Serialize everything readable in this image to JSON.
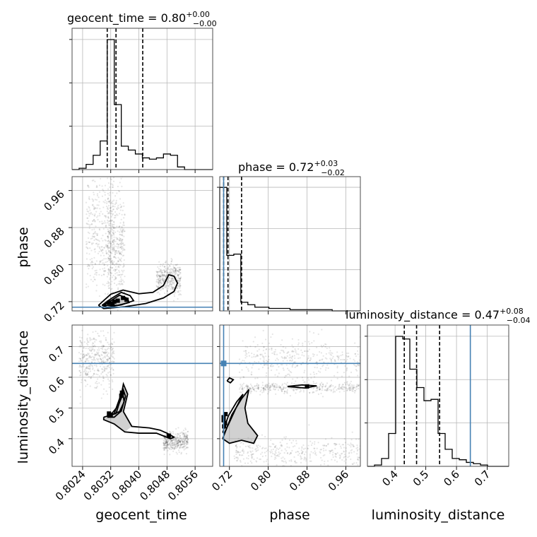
{
  "chart_data": {
    "type": "corner",
    "parameters": [
      {
        "key": "geocent_time",
        "label": "geocent_time",
        "range": [
          0.8021,
          0.8061
        ],
        "ticks": [
          "0.8024",
          "0.8032",
          "0.8040",
          "0.8048",
          "0.8056"
        ],
        "tick_values": [
          0.8024,
          0.8032,
          0.804,
          0.8048,
          0.8056
        ],
        "title_main": "geocent_time = 0.80",
        "title_sup": "+0.00",
        "title_sub": "−0.00",
        "quantiles": [
          0.8031,
          0.80335,
          0.80411
        ],
        "truth": null
      },
      {
        "key": "phase",
        "label": "phase",
        "range": [
          0.7,
          0.99
        ],
        "ticks": [
          "0.72",
          "0.80",
          "0.88",
          "0.96"
        ],
        "tick_values": [
          0.72,
          0.8,
          0.88,
          0.96
        ],
        "title_main": "phase = 0.72",
        "title_sup": "+0.03",
        "title_sub": "−0.02",
        "quantiles": [
          0.708,
          0.717,
          0.745
        ],
        "truth": 0.708
      },
      {
        "key": "luminosity_distance",
        "label": "luminosity_distance",
        "range": [
          0.31,
          0.77
        ],
        "ticks": [
          "0.4",
          "0.5",
          "0.6",
          "0.7"
        ],
        "tick_values": [
          0.4,
          0.5,
          0.6,
          0.7
        ],
        "title_main": "luminosity_distance = 0.47",
        "title_sup": "+0.08",
        "title_sub": "−0.04",
        "quantiles": [
          0.43,
          0.47,
          0.545
        ],
        "truth": 0.645
      }
    ],
    "hist_1d": {
      "geocent_time": {
        "edges": [
          0.8021,
          0.8023,
          0.8025,
          0.8027,
          0.8029,
          0.8031,
          0.8033,
          0.8035,
          0.8037,
          0.8039,
          0.8041,
          0.8043,
          0.8045,
          0.8047,
          0.8049,
          0.8051,
          0.8053,
          0.8055,
          0.8057,
          0.8059,
          0.8061
        ],
        "counts": [
          0.0,
          0.01,
          0.04,
          0.11,
          0.22,
          1.0,
          0.5,
          0.18,
          0.15,
          0.12,
          0.09,
          0.08,
          0.09,
          0.12,
          0.11,
          0.02,
          0.0,
          0.0,
          0.0,
          0.0
        ]
      },
      "phase": {
        "edges": [
          0.7,
          0.7145,
          0.729,
          0.7435,
          0.758,
          0.7725,
          0.787,
          0.8015,
          0.816,
          0.8305,
          0.845,
          0.8595,
          0.874,
          0.8885,
          0.903,
          0.9175,
          0.932,
          0.9465,
          0.961,
          0.9755,
          0.99
        ],
        "counts": [
          1.0,
          0.45,
          0.46,
          0.07,
          0.05,
          0.03,
          0.03,
          0.02,
          0.02,
          0.02,
          0.01,
          0.01,
          0.01,
          0.01,
          0.01,
          0.01,
          0.0,
          0.0,
          0.0,
          0.0
        ]
      },
      "luminosity_distance": {
        "edges": [
          0.31,
          0.333,
          0.356,
          0.379,
          0.402,
          0.425,
          0.448,
          0.471,
          0.494,
          0.517,
          0.54,
          0.563,
          0.586,
          0.609,
          0.632,
          0.655,
          0.678,
          0.701,
          0.724,
          0.747,
          0.77
        ],
        "counts": [
          0.0,
          0.01,
          0.06,
          0.25,
          0.99,
          0.97,
          0.74,
          0.6,
          0.5,
          0.51,
          0.25,
          0.13,
          0.06,
          0.05,
          0.03,
          0.02,
          0.01,
          0.0,
          0.0,
          0.0
        ]
      }
    },
    "scatter_2d": {
      "phase_vs_geocent_time": {
        "contours": [
          [
            [
              0.80295,
              0.712
            ],
            [
              0.8032,
              0.726
            ],
            [
              0.8035,
              0.74
            ],
            [
              0.80375,
              0.733
            ],
            [
              0.80385,
              0.722
            ],
            [
              0.8035,
              0.713
            ],
            [
              0.8031,
              0.708
            ],
            [
              0.80295,
              0.712
            ]
          ],
          [
            [
              0.803,
              0.712
            ],
            [
              0.8032,
              0.722
            ],
            [
              0.80345,
              0.734
            ],
            [
              0.80368,
              0.727
            ],
            [
              0.80372,
              0.718
            ],
            [
              0.8034,
              0.712
            ],
            [
              0.803,
              0.712
            ]
          ],
          [
            [
              0.80285,
              0.712
            ],
            [
              0.8032,
              0.736
            ],
            [
              0.80355,
              0.745
            ],
            [
              0.804,
              0.737
            ],
            [
              0.8044,
              0.74
            ],
            [
              0.8047,
              0.755
            ],
            [
              0.80485,
              0.778
            ],
            [
              0.805,
              0.775
            ],
            [
              0.8051,
              0.76
            ],
            [
              0.805,
              0.742
            ],
            [
              0.8047,
              0.728
            ],
            [
              0.8042,
              0.716
            ],
            [
              0.8036,
              0.709
            ],
            [
              0.803,
              0.705
            ],
            [
              0.80285,
              0.712
            ]
          ]
        ],
        "filled_region": [
          [
            0.803,
            0.712
          ],
          [
            0.8032,
            0.722
          ],
          [
            0.80345,
            0.734
          ],
          [
            0.80368,
            0.727
          ],
          [
            0.80372,
            0.718
          ],
          [
            0.8034,
            0.712
          ],
          [
            0.803,
            0.712
          ]
        ],
        "points": [
          [
            0.80315,
            0.718
          ],
          [
            0.80325,
            0.716
          ],
          [
            0.8033,
            0.72
          ],
          [
            0.8034,
            0.722
          ],
          [
            0.80355,
            0.728
          ],
          [
            0.80365,
            0.724
          ]
        ],
        "cloud_regions": [
          {
            "x_range": [
              0.8025,
              0.8033
            ],
            "y_range": [
              0.74,
              0.99
            ]
          },
          {
            "x_range": [
              0.8031,
              0.8036
            ],
            "y_range": [
              0.72,
              0.95
            ]
          },
          {
            "x_range": [
              0.8045,
              0.8052
            ],
            "y_range": [
              0.74,
              0.8
            ]
          }
        ]
      },
      "luminosity_distance_vs_geocent_time": {
        "contours": [
          [
            [
              0.8031,
              0.47
            ],
            [
              0.8033,
              0.482
            ],
            [
              0.80345,
              0.53
            ],
            [
              0.80355,
              0.562
            ],
            [
              0.80362,
              0.538
            ],
            [
              0.8035,
              0.49
            ],
            [
              0.8033,
              0.47
            ],
            [
              0.8031,
              0.47
            ]
          ],
          [
            [
              0.8032,
              0.478
            ],
            [
              0.8034,
              0.505
            ],
            [
              0.80355,
              0.545
            ],
            [
              0.80358,
              0.52
            ],
            [
              0.80345,
              0.488
            ],
            [
              0.8032,
              0.478
            ]
          ],
          [
            [
              0.803,
              0.47
            ],
            [
              0.80335,
              0.482
            ],
            [
              0.80348,
              0.53
            ],
            [
              0.80356,
              0.578
            ],
            [
              0.80368,
              0.545
            ],
            [
              0.80356,
              0.488
            ],
            [
              0.8038,
              0.44
            ],
            [
              0.8043,
              0.435
            ],
            [
              0.8046,
              0.428
            ],
            [
              0.8048,
              0.418
            ],
            [
              0.805,
              0.405
            ],
            [
              0.8049,
              0.4
            ],
            [
              0.8045,
              0.418
            ],
            [
              0.804,
              0.418
            ],
            [
              0.8036,
              0.422
            ],
            [
              0.8033,
              0.448
            ],
            [
              0.803,
              0.462
            ],
            [
              0.803,
              0.47
            ]
          ]
        ],
        "filled_region": [
          [
            0.803,
            0.47
          ],
          [
            0.80335,
            0.482
          ],
          [
            0.80348,
            0.53
          ],
          [
            0.80356,
            0.578
          ],
          [
            0.80368,
            0.545
          ],
          [
            0.80356,
            0.488
          ],
          [
            0.8038,
            0.44
          ],
          [
            0.8036,
            0.422
          ],
          [
            0.8033,
            0.448
          ],
          [
            0.803,
            0.462
          ],
          [
            0.803,
            0.47
          ]
        ],
        "points": [
          [
            0.80315,
            0.482
          ],
          [
            0.8032,
            0.478
          ],
          [
            0.8035,
            0.54
          ],
          [
            0.80352,
            0.55
          ],
          [
            0.80485,
            0.41
          ]
        ],
        "cloud_regions": [
          {
            "x_range": [
              0.8023,
              0.8033
            ],
            "y_range": [
              0.58,
              0.73
            ]
          },
          {
            "x_range": [
              0.8047,
              0.8054
            ],
            "y_range": [
              0.36,
              0.42
            ]
          }
        ]
      },
      "luminosity_distance_vs_phase": {
        "contours": [
          [
            [
              0.706,
              0.42
            ],
            [
              0.718,
              0.475
            ],
            [
              0.735,
              0.52
            ],
            [
              0.748,
              0.545
            ],
            [
              0.735,
              0.505
            ],
            [
              0.722,
              0.46
            ],
            [
              0.71,
              0.42
            ],
            [
              0.706,
              0.42
            ]
          ],
          [
            [
              0.706,
              0.4
            ],
            [
              0.725,
              0.478
            ],
            [
              0.745,
              0.53
            ],
            [
              0.76,
              0.56
            ],
            [
              0.752,
              0.5
            ],
            [
              0.758,
              0.45
            ],
            [
              0.778,
              0.41
            ],
            [
              0.77,
              0.385
            ],
            [
              0.745,
              0.395
            ],
            [
              0.72,
              0.385
            ],
            [
              0.706,
              0.4
            ]
          ],
          [
            [
              0.715,
              0.588
            ],
            [
              0.72,
              0.598
            ],
            [
              0.728,
              0.592
            ],
            [
              0.722,
              0.582
            ],
            [
              0.715,
              0.588
            ]
          ],
          [
            [
              0.84,
              0.57
            ],
            [
              0.87,
              0.575
            ],
            [
              0.9,
              0.572
            ],
            [
              0.875,
              0.565
            ],
            [
              0.84,
              0.57
            ]
          ]
        ],
        "filled_region": [
          [
            0.706,
            0.4
          ],
          [
            0.725,
            0.478
          ],
          [
            0.745,
            0.53
          ],
          [
            0.76,
            0.56
          ],
          [
            0.752,
            0.5
          ],
          [
            0.758,
            0.45
          ],
          [
            0.778,
            0.41
          ],
          [
            0.77,
            0.385
          ],
          [
            0.745,
            0.395
          ],
          [
            0.72,
            0.385
          ],
          [
            0.706,
            0.4
          ]
        ],
        "points": [
          [
            0.708,
            0.47
          ],
          [
            0.712,
            0.48
          ],
          [
            0.709,
            0.44
          ],
          [
            0.711,
            0.45
          ],
          [
            0.708,
            0.46
          ],
          [
            0.88,
            0.57
          ]
        ],
        "truth_marker": [
          0.708,
          0.645
        ],
        "cloud_regions": [
          {
            "x_range": [
              0.74,
              0.99
            ],
            "y_range": [
              0.55,
              0.58
            ]
          },
          {
            "x_range": [
              0.74,
              0.99
            ],
            "y_range": [
              0.6,
              0.72
            ]
          },
          {
            "x_range": [
              0.73,
              0.99
            ],
            "y_range": [
              0.31,
              0.4
            ]
          }
        ]
      }
    },
    "truth_color": "#4682b4",
    "grid": true
  }
}
